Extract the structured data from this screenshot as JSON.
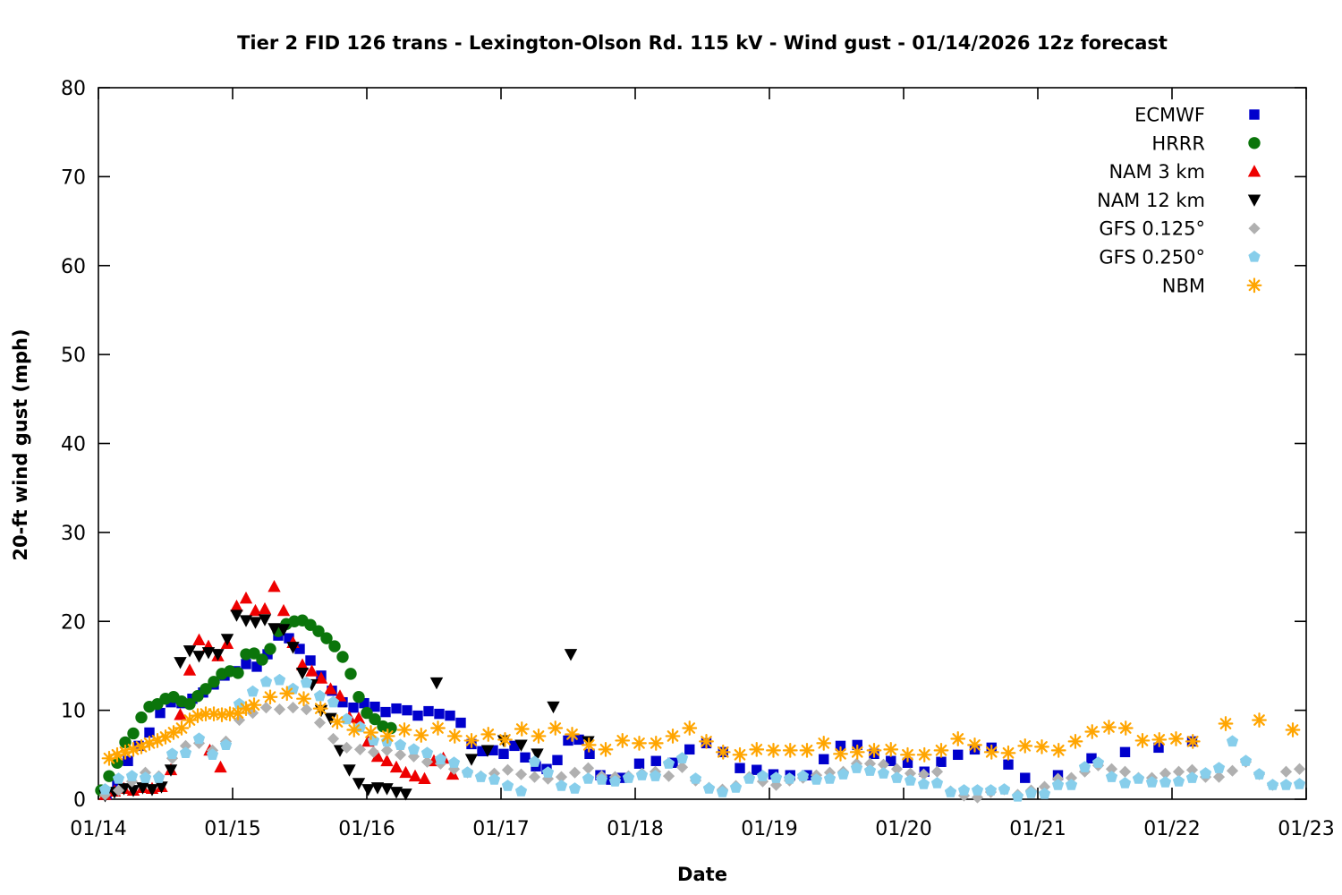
{
  "title": "Tier 2 FID 126 trans - Lexington-Olson Rd. 115 kV - Wind gust - 01/14/2026 12z forecast",
  "x_axis": {
    "label": "Date",
    "tick_labels": [
      "01/14",
      "01/15",
      "01/16",
      "01/17",
      "01/18",
      "01/19",
      "01/20",
      "01/21",
      "01/22",
      "01/23"
    ]
  },
  "y_axis": {
    "label": "20-ft wind gust (mph)",
    "tick_labels": [
      "0",
      "10",
      "20",
      "30",
      "40",
      "50",
      "60",
      "70",
      "80"
    ],
    "min": 0,
    "max": 80
  },
  "legend": {
    "position": "top-right"
  },
  "chart_data": {
    "type": "scatter",
    "x_unit": "days after 01/14 (axis left edge)",
    "x_range": [
      0,
      9
    ],
    "y_range": [
      0,
      80
    ],
    "grid": false,
    "series": [
      {
        "name": "ECMWF",
        "slug": "ecmwf",
        "marker": "square",
        "color": "#0000cc",
        "runs": [
          {
            "start": 0.06,
            "step": 0.08,
            "values": [
              0.5,
              1.8,
              4.3,
              6.0,
              7.5,
              9.7,
              10.9,
              10.8,
              11.3,
              12.0,
              12.9,
              13.9,
              14.4,
              15.2,
              14.9,
              16.3,
              18.4,
              18.1,
              16.9,
              15.6,
              13.9,
              12.2,
              10.9,
              10.3,
              10.8,
              10.4,
              9.8,
              10.2,
              10.0,
              9.4,
              9.9,
              9.6,
              9.4,
              8.6,
              6.2,
              5.4,
              5.5,
              5.1,
              6.0,
              4.7,
              3.7,
              3.4,
              4.4,
              6.6,
              6.7,
              5.1,
              2.7,
              2.2,
              2.4
            ]
          },
          {
            "start": 4.03,
            "step": 0.125,
            "values": [
              4.0,
              4.3,
              4.1,
              5.6,
              6.3,
              5.3,
              3.5,
              3.3,
              2.8,
              2.7,
              2.7,
              4.5,
              6.0,
              6.1,
              5.1,
              4.3,
              4.1,
              3.1,
              4.2,
              5.0,
              5.6,
              5.8,
              3.9,
              2.4
            ]
          },
          {
            "start": 7.15,
            "step": 0.25,
            "values": [
              2.7,
              4.6,
              5.3,
              5.8,
              6.5
            ]
          }
        ]
      },
      {
        "name": "HRRR",
        "slug": "hrrr",
        "marker": "circle",
        "color": "#0b750b",
        "runs": [
          {
            "start": 0.02,
            "step": 0.06,
            "values": [
              1.0,
              2.6,
              4.1,
              6.4,
              7.4,
              9.2,
              10.4,
              10.7,
              11.3,
              11.5,
              11.0,
              10.7,
              11.6,
              12.4,
              13.2,
              14.1,
              14.4,
              14.2,
              16.3,
              16.4,
              15.7,
              16.9,
              18.9,
              19.7,
              20.0,
              20.1,
              19.6,
              18.9,
              18.1,
              17.2,
              16.0,
              14.1,
              11.5,
              9.7,
              9.0,
              8.2,
              8.0
            ]
          }
        ]
      },
      {
        "name": "NAM 3 km",
        "slug": "nam-3km",
        "marker": "triangle-up",
        "color": "#ee0000",
        "runs": [
          {
            "start": 0.05,
            "step": 0.07,
            "values": [
              0.5,
              0.9,
              1.2,
              1.0,
              1.3,
              1.2,
              1.4,
              3.3,
              9.5,
              14.5,
              17.9,
              17.2,
              16.1,
              17.5,
              21.7,
              22.6,
              21.2,
              21.4,
              23.9,
              21.2,
              17.6,
              15.1,
              14.4,
              13.6,
              12.4,
              11.6,
              9.2,
              9.1,
              6.5,
              4.8,
              4.3,
              3.6,
              3.0,
              2.6,
              2.3,
              4.3,
              4.6,
              2.8
            ]
          },
          {
            "points": [
              [
                0.83,
                5.5
              ],
              [
                0.91,
                3.6
              ]
            ]
          }
        ]
      },
      {
        "name": "NAM 12 km",
        "slug": "nam-12km",
        "marker": "triangle-down",
        "color": "#000000",
        "runs": [
          {
            "start": 0.05,
            "step": 0.07,
            "values": [
              0.4,
              0.8,
              1.2,
              1.0,
              1.3,
              1.1,
              1.4,
              3.3,
              15.4,
              16.7,
              16.1,
              16.5,
              16.3,
              18.0,
              20.7,
              20.1,
              19.9,
              20.2,
              19.2,
              19.1,
              17.1,
              14.2,
              12.9,
              10.0,
              9.1,
              5.5,
              3.3,
              1.8,
              1.1,
              1.3,
              1.2,
              0.8,
              0.6
            ]
          },
          {
            "points": [
              [
                2.52,
                13.1
              ],
              [
                2.78,
                4.5
              ],
              [
                2.9,
                5.5
              ],
              [
                3.02,
                6.6
              ],
              [
                3.15,
                6.1
              ],
              [
                3.27,
                5.1
              ],
              [
                3.39,
                10.4
              ],
              [
                3.52,
                16.3
              ],
              [
                3.65,
                6.5
              ]
            ]
          }
        ]
      },
      {
        "name": "GFS 0.125°",
        "slug": "gfs-0125",
        "marker": "diamond",
        "color": "#b0b0b0",
        "runs": [
          {
            "start": 0.05,
            "step": 0.1,
            "values": [
              0.5,
              1.0,
              2.0,
              3.0,
              2.6,
              4.6,
              6.0,
              6.3,
              5.5,
              6.5,
              8.9,
              9.7,
              10.3,
              10.1,
              10.3,
              10.1,
              8.6,
              6.8,
              5.8,
              5.6,
              5.3,
              5.5,
              5.0,
              4.8,
              4.2,
              4.0,
              3.4,
              3.0,
              2.6,
              2.9,
              3.3,
              2.8,
              2.5,
              2.3,
              2.5,
              3.0,
              3.5,
              2.6,
              2.5,
              2.6,
              2.9,
              3.1,
              2.6,
              3.6,
              2.1,
              1.3,
              1.1,
              1.5,
              2.5,
              2.0,
              1.6,
              2.1,
              2.4,
              2.7,
              3.0,
              3.1,
              4.0,
              4.0,
              3.9,
              3.4,
              2.9,
              2.8,
              3.1,
              0.9,
              0.4,
              0.2,
              0.8,
              1.1,
              0.5,
              1.0,
              1.4,
              2.3,
              2.4,
              3.1,
              3.8,
              3.4,
              3.1,
              2.4,
              2.4,
              2.9,
              3.1,
              3.3,
              2.5,
              2.5,
              3.2,
              4.2,
              2.8,
              1.6,
              3.1,
              3.4
            ]
          }
        ]
      },
      {
        "name": "GFS 0.250°",
        "slug": "gfs-0250",
        "marker": "pentagon",
        "color": "#87ceeb",
        "runs": [
          {
            "start": 0.05,
            "step": 0.1,
            "values": [
              1.1,
              2.3,
              2.6,
              2.4,
              2.4,
              5.1,
              5.2,
              6.8,
              5.0,
              6.1,
              10.7,
              12.1,
              13.2,
              13.4,
              12.4,
              13.1,
              11.6,
              10.9,
              9.0,
              8.1,
              6.6,
              6.5,
              6.1,
              5.6,
              5.2,
              4.5,
              4.1,
              3.0,
              2.5,
              2.2,
              1.5,
              0.9,
              4.2,
              3.0,
              1.5,
              1.2,
              2.3,
              2.2,
              2.0,
              2.4,
              2.7,
              2.6,
              4.0,
              4.6,
              2.3,
              1.2,
              0.8,
              1.3,
              2.3,
              2.6,
              2.4,
              2.3,
              2.6,
              2.2,
              2.3,
              2.8,
              3.5,
              3.2,
              2.9,
              2.4,
              2.1,
              1.7,
              1.8,
              0.8,
              1.0,
              1.0,
              1.0,
              1.1,
              0.3,
              0.7,
              0.6,
              1.6,
              1.6,
              3.6,
              4.1,
              2.5,
              1.8,
              2.3,
              1.9,
              1.9,
              2.0,
              2.4,
              2.9,
              3.5,
              6.5,
              4.3,
              2.8,
              1.6,
              1.6,
              1.7
            ]
          }
        ]
      },
      {
        "name": "NBM",
        "slug": "nbm",
        "marker": "asterisk",
        "color": "#ffa500",
        "runs": [
          {
            "start": 0.08,
            "step": 0.06,
            "values": [
              4.6,
              5.0,
              5.3,
              5.6,
              5.9,
              6.3,
              6.6,
              7.0,
              7.5,
              8.0,
              8.9,
              9.4,
              9.6,
              9.6,
              9.5,
              9.6,
              9.7,
              10.2,
              10.6
            ]
          },
          {
            "start": 1.28,
            "step": 0.125,
            "values": [
              11.5,
              11.9,
              11.3,
              10.2,
              8.7,
              7.8,
              7.5,
              7.1,
              7.8,
              7.2,
              8.0,
              7.1,
              6.6,
              7.3,
              6.7,
              7.9,
              7.1,
              8.0,
              7.3,
              6.1,
              5.6,
              6.6,
              6.3,
              6.3,
              7.1,
              8.0,
              6.5,
              5.3,
              5.0,
              5.6,
              5.5,
              5.5,
              5.5,
              6.3,
              5.1,
              5.3,
              5.5,
              5.6,
              5.0,
              5.0
            ]
          },
          {
            "start": 6.28,
            "step": 0.125,
            "values": [
              5.5,
              6.8,
              6.1,
              5.3,
              5.2,
              6.0,
              5.9,
              5.5,
              6.5,
              7.6,
              8.1,
              8.0,
              6.6,
              6.7,
              6.8,
              6.5
            ]
          },
          {
            "start": 8.4,
            "step": 0.25,
            "values": [
              8.5,
              8.9,
              7.8
            ]
          }
        ]
      }
    ]
  }
}
